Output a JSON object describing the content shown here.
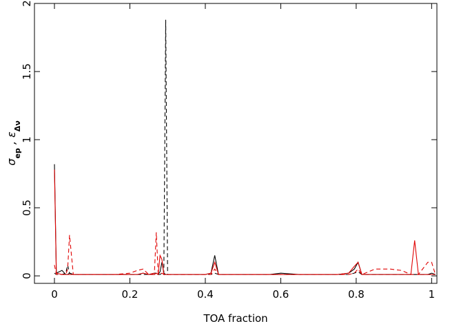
{
  "chart_data": {
    "type": "line",
    "xlabel": "TOA fraction",
    "ylabel": [
      "σ",
      "ep",
      " , ",
      "ε",
      "Δν"
    ],
    "x": [
      0,
      0.005,
      0.02,
      0.03,
      0.035,
      0.04,
      0.05,
      0.07,
      0.1,
      0.13,
      0.16,
      0.2,
      0.22,
      0.235,
      0.25,
      0.265,
      0.27,
      0.275,
      0.28,
      0.285,
      0.29,
      0.295,
      0.3,
      0.31,
      0.35,
      0.4,
      0.415,
      0.425,
      0.435,
      0.47,
      0.52,
      0.57,
      0.6,
      0.65,
      0.7,
      0.75,
      0.78,
      0.795,
      0.805,
      0.815,
      0.85,
      0.89,
      0.92,
      0.945,
      0.955,
      0.965,
      0.99,
      1.0,
      1.01
    ],
    "series": [
      {
        "color": "#000000",
        "linestyle": "solid",
        "values": [
          0.82,
          0.02,
          0.04,
          0.01,
          0.01,
          0.02,
          0.01,
          0.01,
          0.01,
          0.01,
          0.01,
          0.01,
          0.01,
          0.02,
          0.01,
          0.02,
          0.02,
          0.01,
          0.03,
          0.1,
          0.02,
          0.01,
          0.01,
          0.01,
          0.01,
          0.01,
          0.02,
          0.15,
          0.01,
          0.01,
          0.01,
          0.01,
          0.02,
          0.01,
          0.01,
          0.01,
          0.02,
          0.05,
          0.1,
          0.01,
          0.01,
          0.01,
          0.01,
          0.01,
          0.01,
          0.01,
          0.01,
          0.02,
          0.01
        ]
      },
      {
        "color": "#000000",
        "linestyle": "dashed",
        "values": [
          0.02,
          0.01,
          0.01,
          0.02,
          0.08,
          0.02,
          0.01,
          0.01,
          0.01,
          0.01,
          0.01,
          0.01,
          0.01,
          0.01,
          0.01,
          0.01,
          0.01,
          0.01,
          0.01,
          0.02,
          0.01,
          1.88,
          0.01,
          0.01,
          0.01,
          0.01,
          0.01,
          0.02,
          0.01,
          0.01,
          0.01,
          0.01,
          0.01,
          0.01,
          0.01,
          0.01,
          0.01,
          0.02,
          0.03,
          0.01,
          0.01,
          0.01,
          0.01,
          0.01,
          0.01,
          0.01,
          0.01,
          0.01,
          0.01
        ]
      },
      {
        "color": "#e00000",
        "linestyle": "solid",
        "values": [
          0.78,
          0.02,
          0.01,
          0.01,
          0.01,
          0.01,
          0.01,
          0.01,
          0.01,
          0.01,
          0.01,
          0.01,
          0.01,
          0.02,
          0.01,
          0.01,
          0.02,
          0.01,
          0.15,
          0.12,
          0.01,
          0.01,
          0.01,
          0.01,
          0.01,
          0.01,
          0.02,
          0.1,
          0.01,
          0.01,
          0.01,
          0.01,
          0.01,
          0.01,
          0.01,
          0.01,
          0.02,
          0.07,
          0.1,
          0.01,
          0.01,
          0.01,
          0.01,
          0.01,
          0.26,
          0.01,
          0.01,
          0.01,
          0.01
        ]
      },
      {
        "color": "#e00000",
        "linestyle": "dashed",
        "values": [
          0.08,
          0.01,
          0.01,
          0.01,
          0.05,
          0.3,
          0.01,
          0.01,
          0.01,
          0.01,
          0.01,
          0.02,
          0.04,
          0.05,
          0.01,
          0.02,
          0.32,
          0.02,
          0.01,
          0.02,
          0.01,
          0.01,
          0.01,
          0.01,
          0.01,
          0.01,
          0.01,
          0.05,
          0.01,
          0.01,
          0.01,
          0.01,
          0.01,
          0.01,
          0.01,
          0.01,
          0.01,
          0.02,
          0.05,
          0.01,
          0.05,
          0.05,
          0.04,
          0.01,
          0.01,
          0.01,
          0.1,
          0.1,
          0.01
        ]
      }
    ],
    "xlim": [
      -0.053,
      1.014
    ],
    "ylim": [
      -0.055,
      2
    ],
    "xticks": [
      0,
      0.2,
      0.4,
      0.6,
      0.8,
      1
    ],
    "yticks": [
      0,
      0.5,
      1,
      1.5,
      2
    ],
    "grid": false
  }
}
